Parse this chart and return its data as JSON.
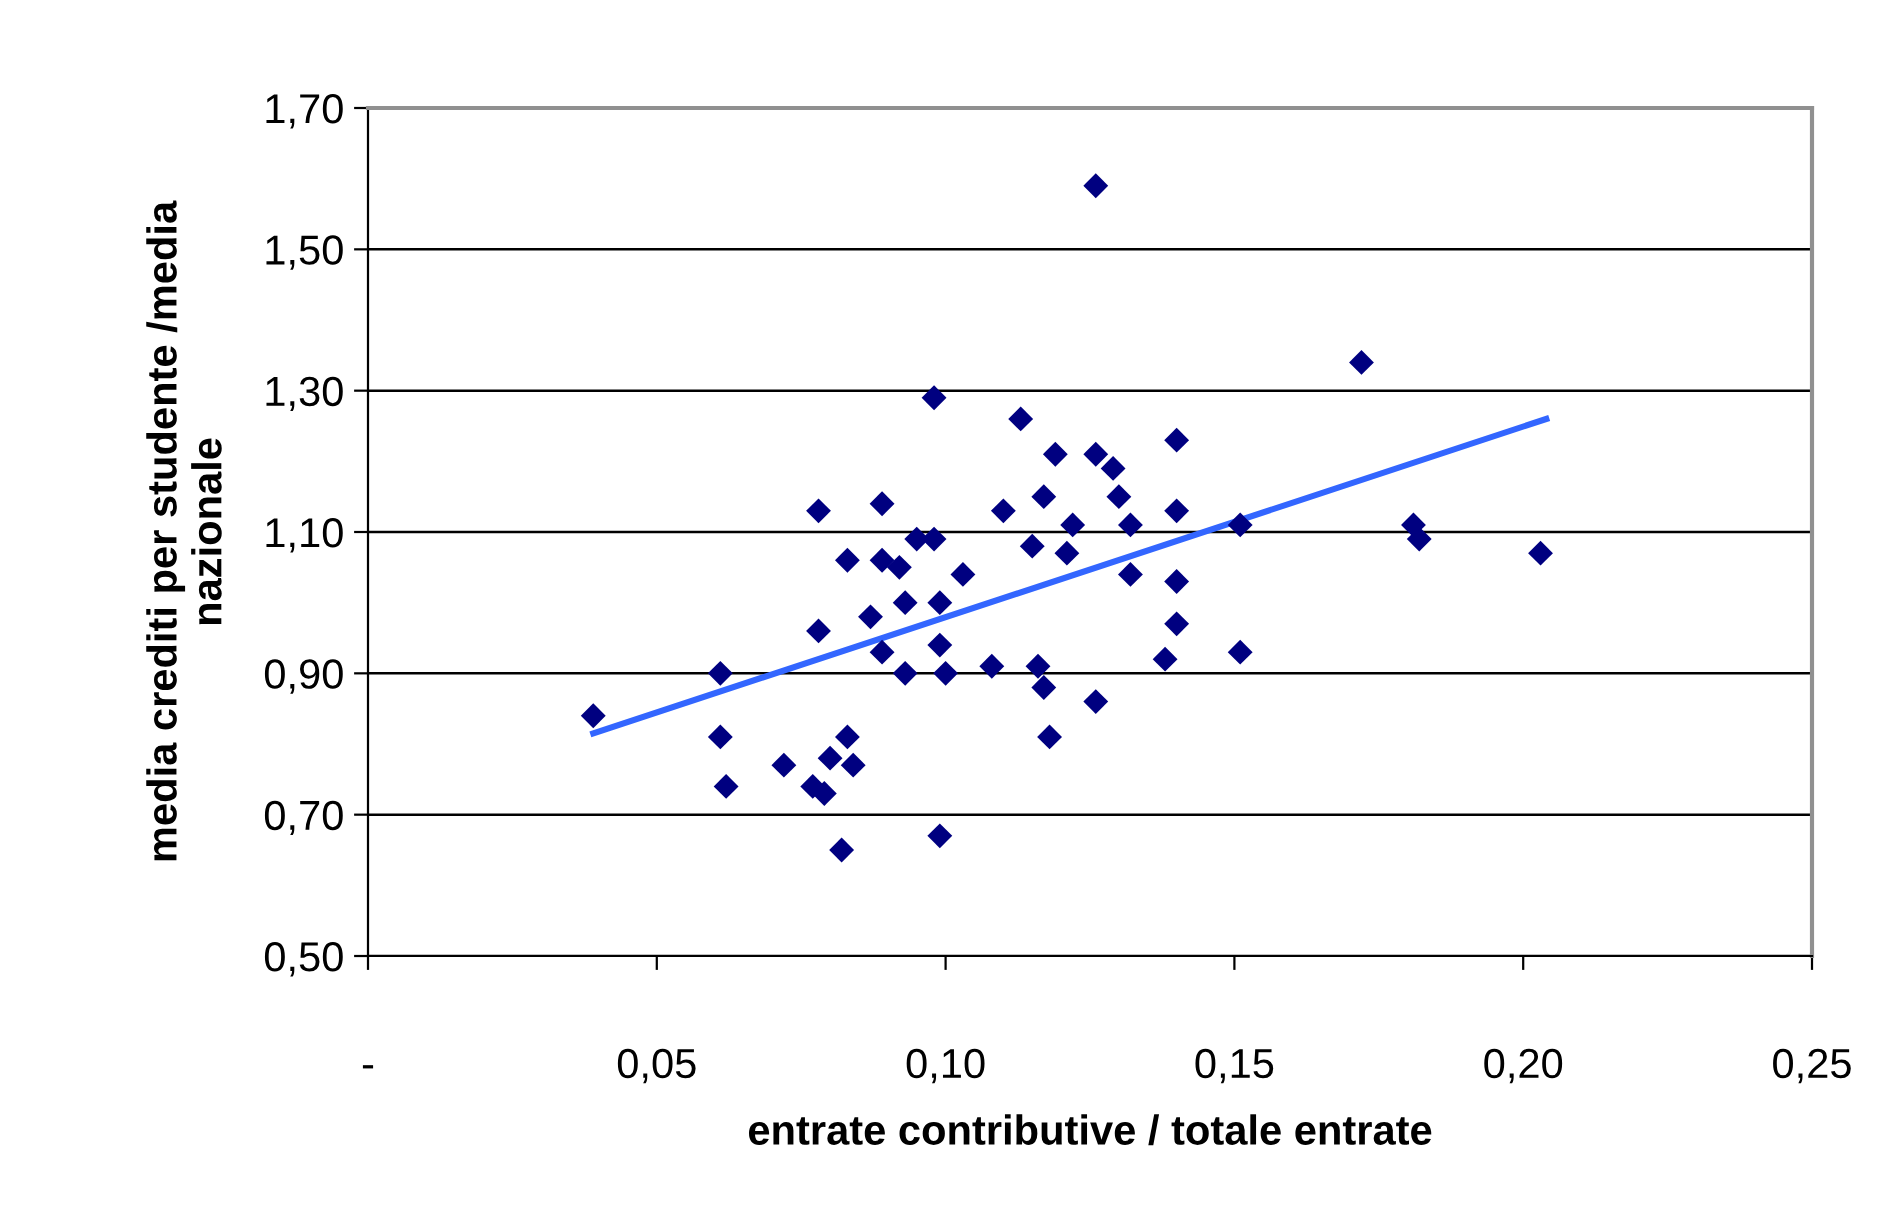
{
  "chart_data": {
    "type": "scatter",
    "xlabel": "entrate contributive / totale entrate",
    "ylabel": "media crediti per studente /media\nnazionale",
    "xlim": [
      0,
      0.25
    ],
    "xticks": [
      {
        "value": 0,
        "label": "-"
      },
      {
        "value": 0.05,
        "label": "0,05"
      },
      {
        "value": 0.1,
        "label": "0,10"
      },
      {
        "value": 0.15,
        "label": "0,15"
      },
      {
        "value": 0.2,
        "label": "0,20"
      },
      {
        "value": 0.25,
        "label": "0,25"
      }
    ],
    "ylim": [
      0.5,
      1.7
    ],
    "yticks": [
      {
        "value": 0.5,
        "label": "0,50"
      },
      {
        "value": 0.7,
        "label": "0,70"
      },
      {
        "value": 0.9,
        "label": "0,90"
      },
      {
        "value": 1.1,
        "label": "1,10"
      },
      {
        "value": 1.3,
        "label": "1,30"
      },
      {
        "value": 1.5,
        "label": "1,50"
      },
      {
        "value": 1.7,
        "label": "1,70"
      }
    ],
    "grid": "y",
    "legend": false,
    "series": [
      {
        "marker": "diamond",
        "color": "#000080",
        "x": [
          0.039,
          0.061,
          0.061,
          0.062,
          0.072,
          0.077,
          0.079,
          0.078,
          0.08,
          0.083,
          0.084,
          0.082,
          0.083,
          0.089,
          0.092,
          0.087,
          0.089,
          0.093,
          0.093,
          0.095,
          0.098,
          0.099,
          0.099,
          0.1,
          0.099,
          0.103,
          0.108,
          0.115,
          0.116,
          0.117,
          0.118,
          0.121,
          0.122,
          0.126,
          0.098,
          0.113,
          0.119,
          0.126,
          0.126,
          0.078,
          0.089,
          0.11,
          0.117,
          0.172,
          0.129,
          0.14,
          0.13,
          0.14,
          0.132,
          0.151,
          0.181,
          0.182,
          0.203,
          0.132,
          0.14,
          0.14,
          0.138,
          0.151
        ],
        "values": [
          0.84,
          0.9,
          0.81,
          0.74,
          0.77,
          0.74,
          0.73,
          0.96,
          0.78,
          0.81,
          0.77,
          0.65,
          1.06,
          1.06,
          1.05,
          0.98,
          0.93,
          1.0,
          0.9,
          1.09,
          1.09,
          1.0,
          0.94,
          0.9,
          0.67,
          1.04,
          0.91,
          1.08,
          0.91,
          0.88,
          0.81,
          1.07,
          1.11,
          0.86,
          1.29,
          1.26,
          1.21,
          1.21,
          1.59,
          1.13,
          1.14,
          1.13,
          1.15,
          1.34,
          1.19,
          1.23,
          1.15,
          1.13,
          1.11,
          1.11,
          1.11,
          1.09,
          1.07,
          1.04,
          1.03,
          0.97,
          0.92,
          0.93
        ]
      },
      {
        "type": "line",
        "marker": "none",
        "line_style": "solid",
        "color": "#3366ff",
        "x": [
          0.039,
          0.204
        ],
        "values": [
          0.815,
          1.26
        ]
      }
    ]
  }
}
